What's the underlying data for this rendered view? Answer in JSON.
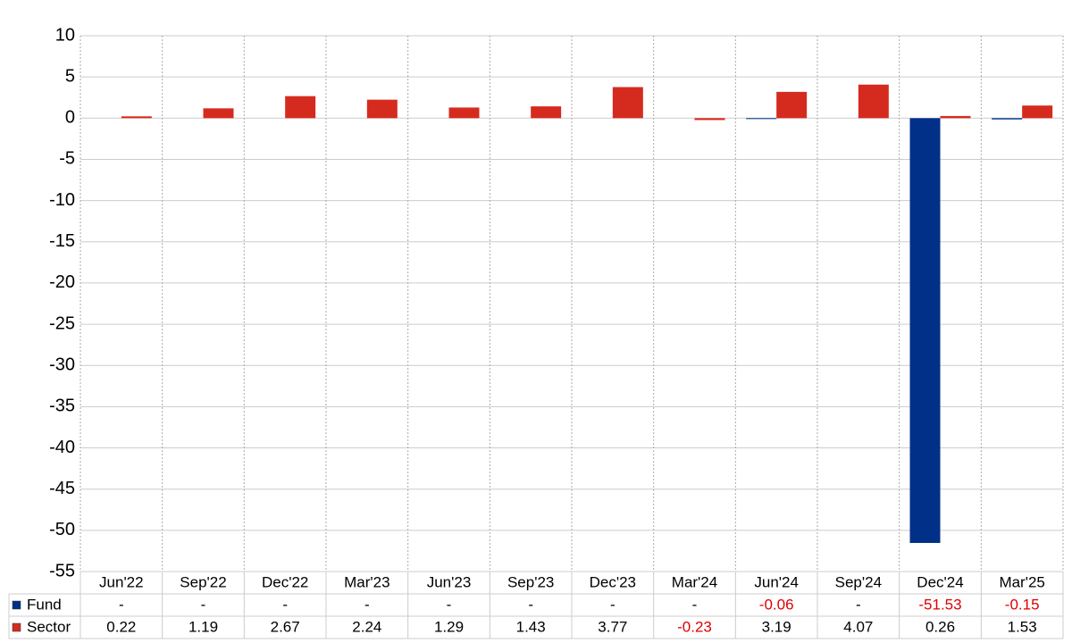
{
  "chart_data": {
    "type": "bar",
    "categories": [
      "Jun'22",
      "Sep'22",
      "Dec'22",
      "Mar'23",
      "Jun'23",
      "Sep'23",
      "Dec'23",
      "Mar'24",
      "Jun'24",
      "Sep'24",
      "Dec'24",
      "Mar'25"
    ],
    "series": [
      {
        "name": "Fund",
        "color": "#003087",
        "values": [
          null,
          null,
          null,
          null,
          null,
          null,
          null,
          null,
          -0.06,
          null,
          -51.53,
          -0.15
        ],
        "value_labels": [
          "-",
          "-",
          "-",
          "-",
          "-",
          "-",
          "-",
          "-",
          "-0.06",
          "-",
          "-51.53",
          "-0.15"
        ]
      },
      {
        "name": "Sector",
        "color": "#d52b1e",
        "values": [
          0.22,
          1.19,
          2.67,
          2.24,
          1.29,
          1.43,
          3.77,
          -0.23,
          3.19,
          4.07,
          0.26,
          1.53
        ]
      }
    ],
    "ylim": [
      -55,
      10
    ],
    "yticks": [
      -55,
      -50,
      -45,
      -40,
      -35,
      -30,
      -25,
      -20,
      -15,
      -10,
      -5,
      0,
      5,
      10
    ],
    "grid": true
  }
}
